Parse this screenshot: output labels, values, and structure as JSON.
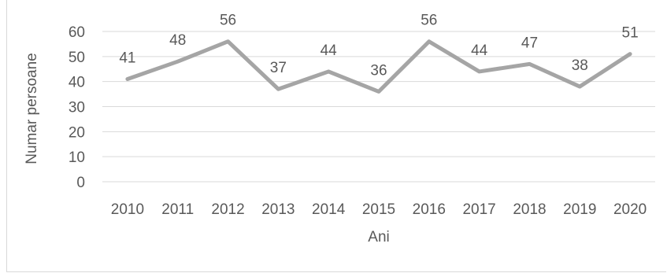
{
  "chart_data": {
    "type": "line",
    "title": "",
    "xlabel": "Ani",
    "ylabel": "Numar persoane",
    "categories": [
      "2010",
      "2011",
      "2012",
      "2013",
      "2014",
      "2015",
      "2016",
      "2017",
      "2018",
      "2019",
      "2020"
    ],
    "series": [
      {
        "values": [
          41,
          48,
          56,
          37,
          44,
          36,
          56,
          44,
          47,
          38,
          51
        ],
        "color": "#a5a5a5"
      }
    ],
    "ylim": [
      0,
      60
    ],
    "yticks": [
      0,
      10,
      20,
      30,
      40,
      50,
      60
    ],
    "grid": true,
    "legend": "none",
    "data_labels": true,
    "gridline_color": "#d9d9d9",
    "text_color": "#595959"
  }
}
